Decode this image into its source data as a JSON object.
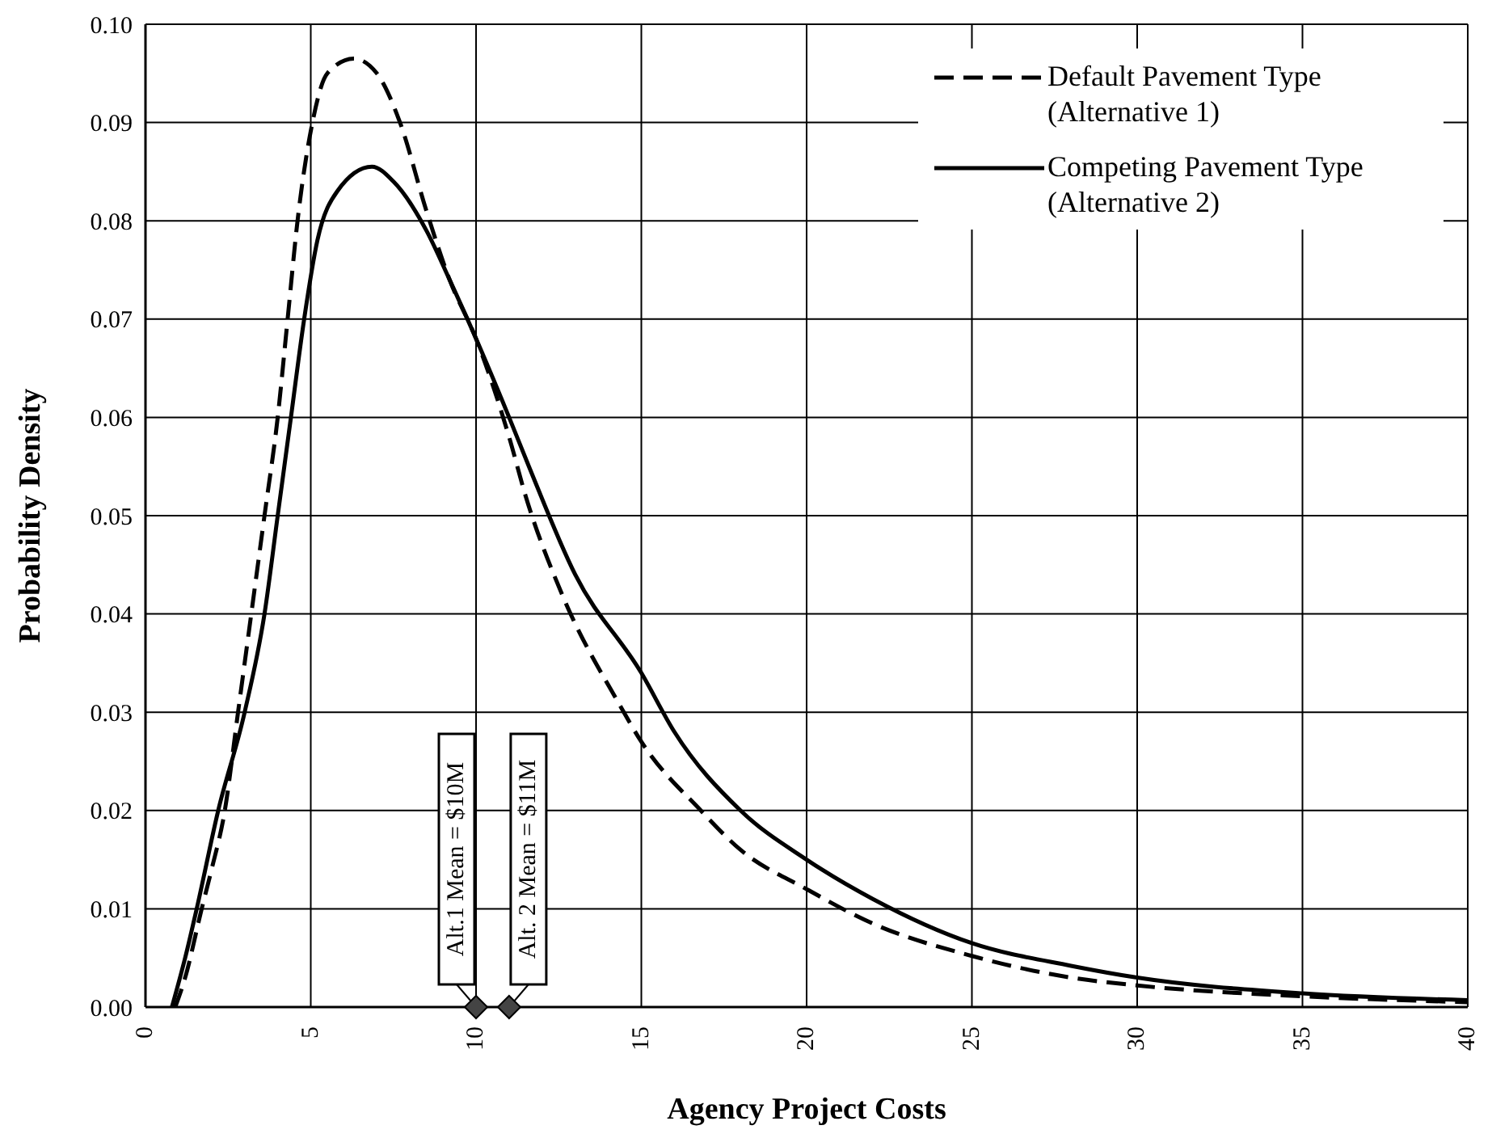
{
  "chart_data": {
    "type": "line",
    "xlabel": "Agency Project Costs",
    "ylabel": "Probability Density",
    "xlim": [
      0,
      40
    ],
    "xticks": [
      0,
      5,
      10,
      15,
      20,
      25,
      30,
      35,
      40
    ],
    "ylim": [
      0,
      0.1
    ],
    "yticks": [
      {
        "value": 0,
        "label": "0.00"
      },
      {
        "value": 0.01,
        "label": "0.01"
      },
      {
        "value": 0.02,
        "label": "0.02"
      },
      {
        "value": 0.03,
        "label": "0.03"
      },
      {
        "value": 0.04,
        "label": "0.04"
      },
      {
        "value": 0.05,
        "label": "0.05"
      },
      {
        "value": 0.06,
        "label": "0.06"
      },
      {
        "value": 0.07,
        "label": "0.07"
      },
      {
        "value": 0.08,
        "label": "0.08"
      },
      {
        "value": 0.09,
        "label": "0.09"
      },
      {
        "value": 0.1,
        "label": "0.10"
      }
    ],
    "grid": true,
    "legend": "top right",
    "marker": "none",
    "series": [
      {
        "name": "Default Pavement Type (Alternative 1)",
        "color": "#000000",
        "line_style": "dashed",
        "x": [
          0.9,
          1.2,
          1.7,
          2.0,
          2.4,
          2.8,
          3.2,
          3.6,
          4.0,
          4.3,
          4.6,
          5.05,
          5.5,
          6.3,
          7.0,
          7.7,
          8.5,
          9.2,
          10,
          11,
          11.5,
          12.6,
          14.3,
          15,
          16.8,
          18,
          20,
          22,
          25,
          28,
          30,
          35,
          40
        ],
        "values": [
          0,
          0.003,
          0.01,
          0.014,
          0.02,
          0.03,
          0.04,
          0.05,
          0.06,
          0.07,
          0.08,
          0.09,
          0.095,
          0.0965,
          0.095,
          0.09,
          0.081,
          0.074,
          0.068,
          0.058,
          0.052,
          0.042,
          0.031,
          0.027,
          0.02,
          0.016,
          0.012,
          0.0085,
          0.0052,
          0.003,
          0.0022,
          0.0011,
          0.0005
        ]
      },
      {
        "name": "Competing Pavement Type (Alternative 2)",
        "color": "#000000",
        "line_style": "solid",
        "x": [
          0.8,
          1.2,
          1.55,
          2.2,
          3.0,
          3.6,
          4.0,
          4.4,
          4.8,
          5.2,
          5.8,
          6.85,
          7.5,
          8.5,
          9.2,
          10,
          11,
          11.6,
          13,
          15,
          16,
          18,
          20,
          22,
          25,
          28,
          30,
          35,
          40
        ],
        "values": [
          0,
          0.005,
          0.01,
          0.02,
          0.03,
          0.04,
          0.05,
          0.06,
          0.07,
          0.078,
          0.083,
          0.0855,
          0.084,
          0.079,
          0.074,
          0.068,
          0.06,
          0.055,
          0.044,
          0.034,
          0.028,
          0.02,
          0.015,
          0.011,
          0.0065,
          0.0042,
          0.003,
          0.0014,
          0.0007
        ]
      }
    ],
    "annotations": [
      {
        "text": "Alt.1 Mean = $10M",
        "x": 10,
        "y": 0
      },
      {
        "text": "Alt. 2 Mean = $11M",
        "x": 11,
        "y": 0
      }
    ]
  }
}
